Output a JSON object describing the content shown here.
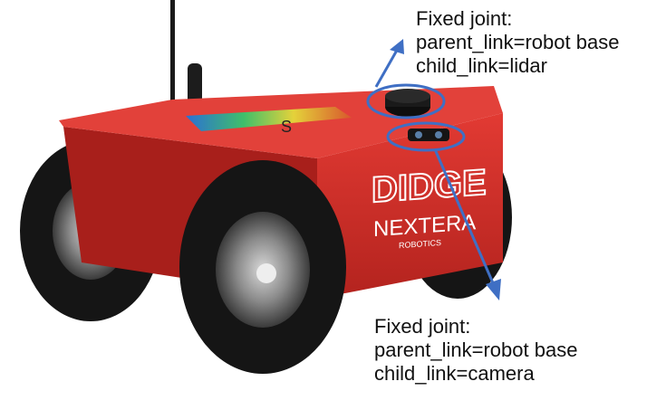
{
  "annotations": {
    "lidar": {
      "line1": "Fixed joint:",
      "line2": "parent_link=robot base",
      "line3": "child_link=lidar"
    },
    "camera": {
      "line1": "Fixed joint:",
      "line2": "parent_link=robot base",
      "line3": "child_link=camera"
    }
  },
  "robot": {
    "top_marker": "S",
    "brand_main": "DIDGE",
    "brand_sub": "NEXTERA",
    "brand_small": "ROBOTICS",
    "body_color": "#d8302a",
    "tire_color": "#151515",
    "hub_color": "#8a8a8a"
  },
  "colors": {
    "annotation": "#3f6fc4",
    "text": "#111111"
  }
}
